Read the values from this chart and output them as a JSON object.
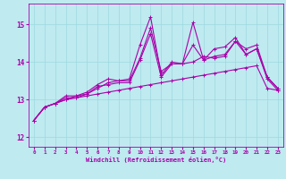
{
  "xlabel": "Windchill (Refroidissement éolien,°C)",
  "xlim": [
    -0.5,
    23.5
  ],
  "ylim": [
    11.75,
    15.55
  ],
  "yticks": [
    12,
    13,
    14,
    15
  ],
  "xticks": [
    0,
    1,
    2,
    3,
    4,
    5,
    6,
    7,
    8,
    9,
    10,
    11,
    12,
    13,
    14,
    15,
    16,
    17,
    18,
    19,
    20,
    21,
    22,
    23
  ],
  "background_color": "#beeaf0",
  "grid_color": "#9dd8e0",
  "line_color": "#aa00aa",
  "lines": [
    {
      "x": [
        0,
        1,
        2,
        3,
        4,
        5,
        6,
        7,
        8,
        9,
        10,
        11,
        12,
        13,
        14,
        15,
        16,
        17,
        18,
        19,
        20,
        21,
        22,
        23
      ],
      "y": [
        12.45,
        12.8,
        12.9,
        13.0,
        13.05,
        13.1,
        13.15,
        13.2,
        13.25,
        13.3,
        13.35,
        13.4,
        13.45,
        13.5,
        13.55,
        13.6,
        13.65,
        13.7,
        13.75,
        13.8,
        13.85,
        13.9,
        13.3,
        13.25
      ],
      "linestyle": "-",
      "linewidth": 0.8
    },
    {
      "x": [
        0,
        1,
        2,
        3,
        4,
        5,
        6,
        7,
        8,
        9,
        10,
        11,
        12,
        13,
        14,
        15,
        16,
        17,
        18,
        19,
        20,
        21,
        22,
        23
      ],
      "y": [
        12.45,
        12.8,
        12.9,
        13.0,
        13.1,
        13.15,
        13.3,
        13.45,
        13.5,
        13.5,
        14.1,
        14.9,
        13.75,
        13.95,
        13.95,
        14.0,
        14.15,
        14.1,
        14.15,
        14.55,
        14.2,
        14.35,
        13.55,
        13.25
      ],
      "linestyle": "-",
      "linewidth": 0.8
    },
    {
      "x": [
        0,
        1,
        2,
        3,
        4,
        5,
        6,
        7,
        8,
        9,
        10,
        11,
        12,
        13,
        14,
        15,
        16,
        17,
        18,
        19,
        20,
        21,
        22,
        23
      ],
      "y": [
        12.45,
        12.8,
        12.9,
        13.1,
        13.1,
        13.2,
        13.4,
        13.55,
        13.5,
        13.55,
        14.45,
        15.2,
        13.65,
        14.0,
        13.95,
        15.05,
        14.05,
        14.15,
        14.2,
        14.55,
        14.35,
        14.45,
        13.6,
        13.3
      ],
      "linestyle": "-",
      "linewidth": 0.8
    },
    {
      "x": [
        0,
        1,
        2,
        3,
        4,
        5,
        6,
        7,
        8,
        9,
        10,
        11,
        12,
        13,
        14,
        15,
        16,
        17,
        18,
        19,
        20,
        21,
        22,
        23
      ],
      "y": [
        12.45,
        12.8,
        12.9,
        13.05,
        13.05,
        13.15,
        13.35,
        13.4,
        13.45,
        13.45,
        14.05,
        14.75,
        13.6,
        13.95,
        13.95,
        14.45,
        14.05,
        14.35,
        14.4,
        14.65,
        14.2,
        14.35,
        13.6,
        13.3
      ],
      "linestyle": "-",
      "linewidth": 0.8
    }
  ]
}
